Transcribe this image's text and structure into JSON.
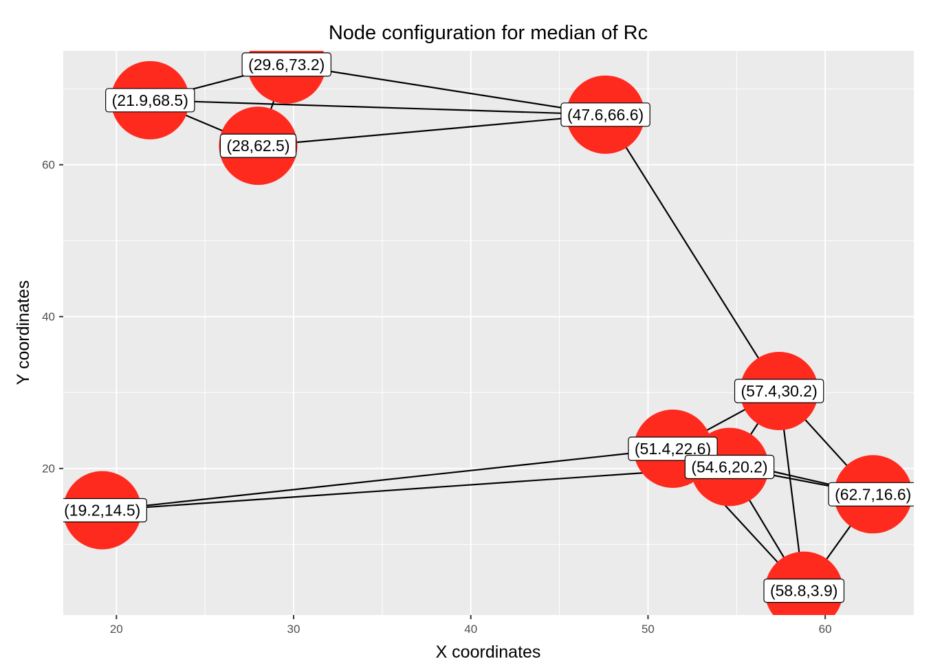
{
  "chart_data": {
    "type": "scatter",
    "title": "Node configuration for median of Rc",
    "xlabel": "X coordinates",
    "ylabel": "Y coordinates",
    "xlim": [
      17,
      65
    ],
    "ylim": [
      0.7,
      75
    ],
    "x_ticks": [
      20,
      30,
      40,
      50,
      60
    ],
    "y_ticks": [
      20,
      40,
      60
    ],
    "x_minor": [
      25,
      35,
      45,
      55
    ],
    "y_minor": [
      10,
      30,
      50,
      70
    ],
    "grid": true,
    "node_color": "#ff2a1e",
    "panel_color": "#ebebeb",
    "nodes": [
      {
        "x": 21.9,
        "y": 68.5,
        "label": "(21.9,68.5)"
      },
      {
        "x": 29.6,
        "y": 73.2,
        "label": "(29.6,73.2)"
      },
      {
        "x": 28.0,
        "y": 62.5,
        "label": "(28,62.5)"
      },
      {
        "x": 47.6,
        "y": 66.6,
        "label": "(47.6,66.6)"
      },
      {
        "x": 57.4,
        "y": 30.2,
        "label": "(57.4,30.2)"
      },
      {
        "x": 51.4,
        "y": 22.6,
        "label": "(51.4,22.6)"
      },
      {
        "x": 54.6,
        "y": 20.2,
        "label": "(54.6,20.2)"
      },
      {
        "x": 62.7,
        "y": 16.6,
        "label": "(62.7,16.6)"
      },
      {
        "x": 19.2,
        "y": 14.5,
        "label": "(19.2,14.5)"
      },
      {
        "x": 58.8,
        "y": 3.9,
        "label": "(58.8,3.9)"
      }
    ],
    "edges": [
      [
        0,
        1
      ],
      [
        0,
        2
      ],
      [
        0,
        3
      ],
      [
        1,
        2
      ],
      [
        1,
        3
      ],
      [
        2,
        3
      ],
      [
        3,
        4
      ],
      [
        4,
        5
      ],
      [
        4,
        6
      ],
      [
        4,
        7
      ],
      [
        4,
        9
      ],
      [
        5,
        8
      ],
      [
        5,
        7
      ],
      [
        5,
        9
      ],
      [
        6,
        8
      ],
      [
        6,
        7
      ],
      [
        6,
        9
      ],
      [
        7,
        9
      ]
    ]
  }
}
